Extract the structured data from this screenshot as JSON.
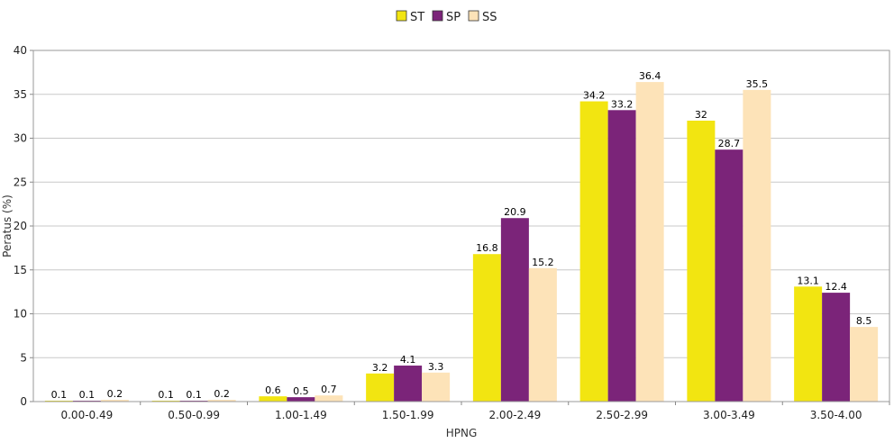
{
  "chart_data": {
    "type": "bar",
    "title": "",
    "xlabel": "HPNG",
    "ylabel": "Peratus (%)",
    "ylim": [
      0,
      40
    ],
    "yticks": [
      0,
      5,
      10,
      15,
      20,
      25,
      30,
      35,
      40
    ],
    "grid": true,
    "legend_position": "top-center",
    "categories": [
      "0.00-0.49",
      "0.50-0.99",
      "1.00-1.49",
      "1.50-1.99",
      "2.00-2.49",
      "2.50-2.99",
      "3.00-3.49",
      "3.50-4.00"
    ],
    "series": [
      {
        "name": "ST",
        "color": "#F2E511",
        "values": [
          0.1,
          0.1,
          0.6,
          3.2,
          16.8,
          34.2,
          32,
          13.1
        ]
      },
      {
        "name": "SP",
        "color": "#7B2479",
        "values": [
          0.1,
          0.1,
          0.5,
          4.1,
          20.9,
          33.2,
          28.7,
          12.4
        ]
      },
      {
        "name": "SS",
        "color": "#FDE3B8",
        "values": [
          0.2,
          0.2,
          0.7,
          3.3,
          15.2,
          36.4,
          35.5,
          8.5
        ]
      }
    ]
  }
}
